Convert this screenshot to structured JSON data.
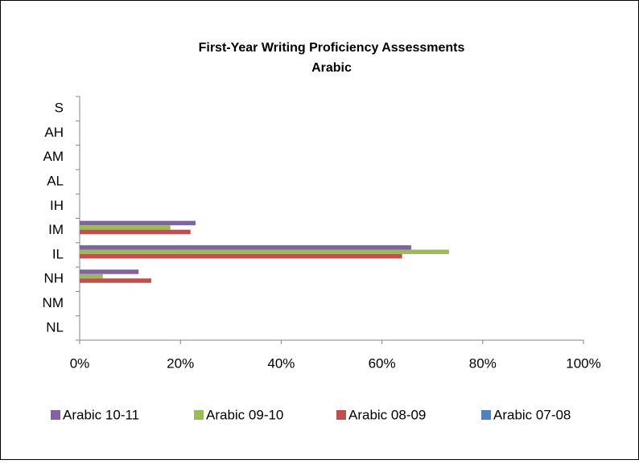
{
  "chart_data": {
    "type": "bar",
    "orientation": "horizontal",
    "title": "First-Year Writing Proficiency Assessments",
    "subtitle": "Arabic",
    "categories": [
      "NL",
      "NM",
      "NH",
      "IL",
      "IM",
      "IH",
      "AL",
      "AM",
      "AH",
      "S"
    ],
    "series": [
      {
        "name": "Arabic 10-11",
        "color": "#8064a2",
        "values": [
          0,
          0,
          11.7,
          65.8,
          23,
          0,
          0,
          0,
          0,
          0
        ]
      },
      {
        "name": "Arabic 09-10",
        "color": "#9bbb59",
        "values": [
          0,
          0,
          4.6,
          73.3,
          18,
          0,
          0,
          0,
          0,
          0
        ]
      },
      {
        "name": "Arabic 08-09",
        "color": "#c0504d",
        "values": [
          0,
          0,
          14.2,
          64,
          22,
          0,
          0,
          0,
          0,
          0
        ]
      },
      {
        "name": "Arabic 07-08",
        "color": "#4f81bd",
        "values": [
          0,
          0,
          0,
          0,
          0,
          0,
          0,
          0,
          0,
          0
        ]
      }
    ],
    "xlim": [
      0,
      100
    ],
    "xticks": [
      {
        "value": 0,
        "label": "0%"
      },
      {
        "value": 20,
        "label": "20%"
      },
      {
        "value": 40,
        "label": "40%"
      },
      {
        "value": 60,
        "label": "60%"
      },
      {
        "value": 80,
        "label": "80%"
      },
      {
        "value": 100,
        "label": "100%"
      }
    ],
    "legend": "bottom",
    "grid": false
  }
}
